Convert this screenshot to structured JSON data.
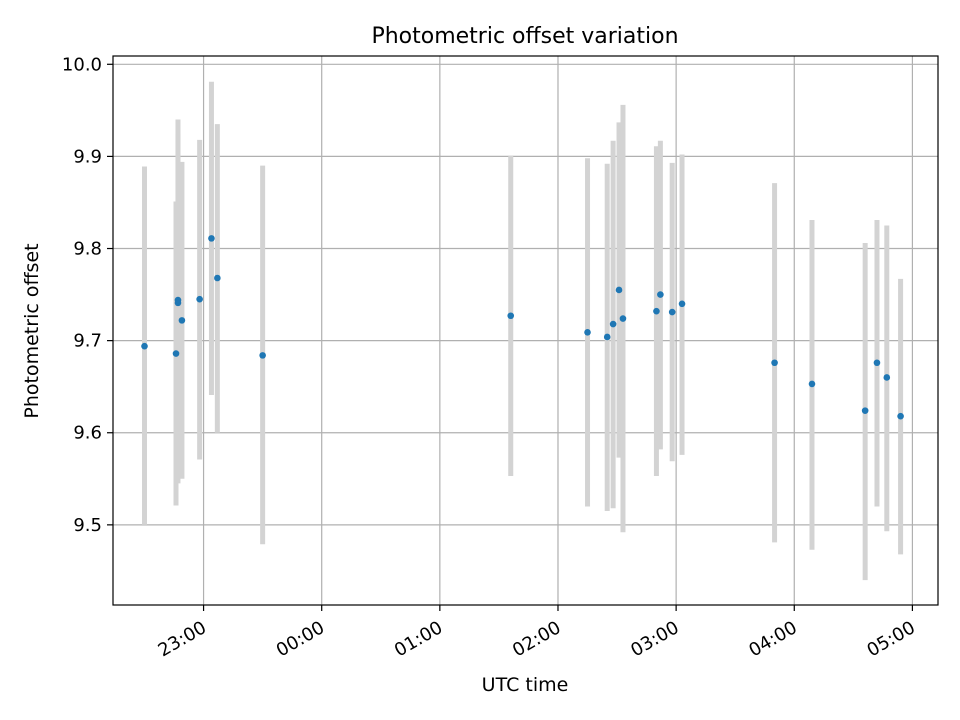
{
  "chart_data": {
    "type": "scatter",
    "title": "Photometric offset variation",
    "xlabel": "UTC time",
    "ylabel": "Photometric offset",
    "x_unit": "UTC (overnight; ticks after midnight belong to the next day)",
    "xlim": [
      "22:14",
      "05:13"
    ],
    "ylim": [
      9.413,
      10.009
    ],
    "grid": true,
    "x_ticks": [
      "23:00",
      "00:00",
      "01:00",
      "02:00",
      "03:00",
      "04:00",
      "05:00"
    ],
    "y_ticks": [
      "9.5",
      "9.6",
      "9.7",
      "9.8",
      "9.9",
      "10.0"
    ],
    "colors": {
      "point": "#1f77b4",
      "errorbar": "#d3d3d3",
      "grid": "#b0b0b0"
    },
    "series": [
      {
        "points": [
          {
            "x": "22:30",
            "y": 9.694,
            "ylow": 9.5,
            "yhigh": 9.889
          },
          {
            "x": "22:46",
            "y": 9.686,
            "ylow": 9.521,
            "yhigh": 9.851
          },
          {
            "x": "22:47",
            "y": 9.741,
            "ylow": 9.545,
            "yhigh": 9.94
          },
          {
            "x": "22:47",
            "y": 9.744,
            "ylow": 9.556,
            "yhigh": 9.925
          },
          {
            "x": "22:49",
            "y": 9.722,
            "ylow": 9.55,
            "yhigh": 9.894
          },
          {
            "x": "22:58",
            "y": 9.745,
            "ylow": 9.571,
            "yhigh": 9.918
          },
          {
            "x": "23:04",
            "y": 9.811,
            "ylow": 9.641,
            "yhigh": 9.981
          },
          {
            "x": "23:07",
            "y": 9.768,
            "ylow": 9.6,
            "yhigh": 9.935
          },
          {
            "x": "23:30",
            "y": 9.684,
            "ylow": 9.479,
            "yhigh": 9.89
          },
          {
            "x": "01:36",
            "y": 9.727,
            "ylow": 9.553,
            "yhigh": 9.901
          },
          {
            "x": "02:15",
            "y": 9.709,
            "ylow": 9.52,
            "yhigh": 9.898
          },
          {
            "x": "02:25",
            "y": 9.704,
            "ylow": 9.515,
            "yhigh": 9.892
          },
          {
            "x": "02:28",
            "y": 9.718,
            "ylow": 9.518,
            "yhigh": 9.917
          },
          {
            "x": "02:31",
            "y": 9.755,
            "ylow": 9.573,
            "yhigh": 9.937
          },
          {
            "x": "02:33",
            "y": 9.724,
            "ylow": 9.492,
            "yhigh": 9.956
          },
          {
            "x": "02:50",
            "y": 9.732,
            "ylow": 9.553,
            "yhigh": 9.911
          },
          {
            "x": "02:52",
            "y": 9.75,
            "ylow": 9.582,
            "yhigh": 9.917
          },
          {
            "x": "02:58",
            "y": 9.731,
            "ylow": 9.569,
            "yhigh": 9.893
          },
          {
            "x": "03:03",
            "y": 9.74,
            "ylow": 9.576,
            "yhigh": 9.902
          },
          {
            "x": "03:50",
            "y": 9.676,
            "ylow": 9.481,
            "yhigh": 9.871
          },
          {
            "x": "04:09",
            "y": 9.653,
            "ylow": 9.473,
            "yhigh": 9.831
          },
          {
            "x": "04:36",
            "y": 9.624,
            "ylow": 9.44,
            "yhigh": 9.806
          },
          {
            "x": "04:42",
            "y": 9.676,
            "ylow": 9.52,
            "yhigh": 9.831
          },
          {
            "x": "04:47",
            "y": 9.66,
            "ylow": 9.493,
            "yhigh": 9.825
          },
          {
            "x": "04:54",
            "y": 9.618,
            "ylow": 9.468,
            "yhigh": 9.767
          }
        ]
      }
    ]
  }
}
